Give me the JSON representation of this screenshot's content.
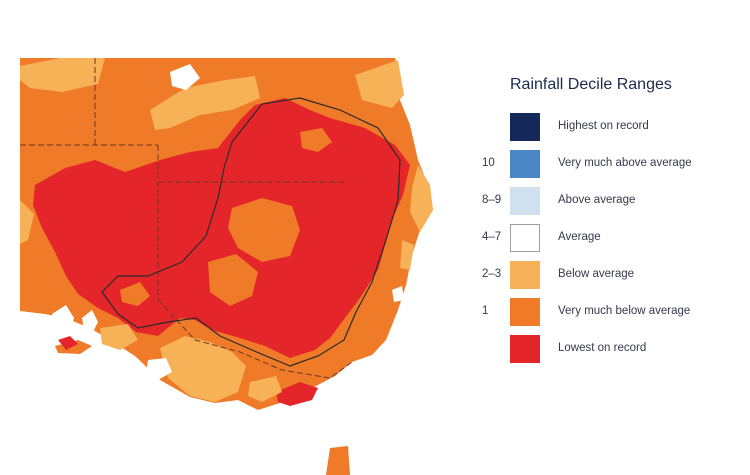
{
  "legend": {
    "title": "Rainfall Decile Ranges",
    "items": [
      {
        "decile": "",
        "label": "Highest on record",
        "color": "#14295a"
      },
      {
        "decile": "10",
        "label": "Very much above average",
        "color": "#4a87c7"
      },
      {
        "decile": "8–9",
        "label": "Above average",
        "color": "#cfe0ef"
      },
      {
        "decile": "4–7",
        "label": "Average",
        "color": "#ffffff"
      },
      {
        "decile": "2–3",
        "label": "Below average",
        "color": "#f7b157"
      },
      {
        "decile": "1",
        "label": "Very much below average",
        "color": "#ef7a27"
      },
      {
        "decile": "",
        "label": "Lowest on record",
        "color": "#e4262b"
      }
    ]
  }
}
